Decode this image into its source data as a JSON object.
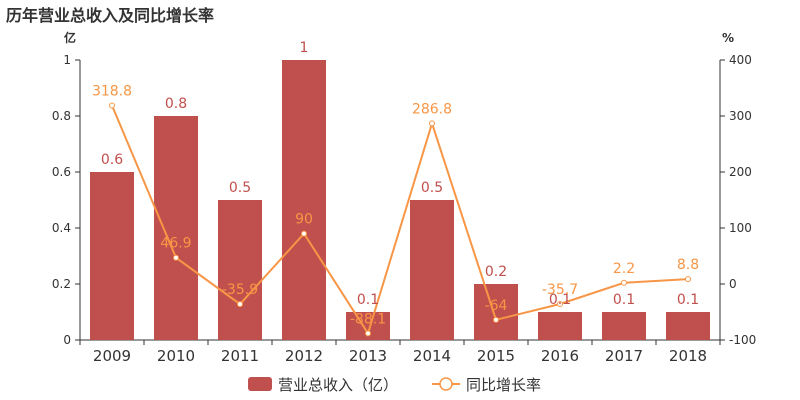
{
  "chart_data": {
    "type": "bar",
    "title": "历年营业总收入及同比增长率",
    "categories": [
      "2009",
      "2010",
      "2011",
      "2012",
      "2013",
      "2014",
      "2015",
      "2016",
      "2017",
      "2018"
    ],
    "series": [
      {
        "name": "营业总收入（亿）",
        "type": "bar",
        "axis": "left",
        "color": "#c0504d",
        "values": [
          0.6,
          0.8,
          0.5,
          1,
          0.1,
          0.5,
          0.2,
          0.1,
          0.1,
          0.1
        ],
        "labels": [
          "0.6",
          "0.8",
          "0.5",
          "1",
          "0.1",
          "0.5",
          "0.2",
          "0.1",
          "0.1",
          "0.1"
        ]
      },
      {
        "name": "同比增长率",
        "type": "line",
        "axis": "right",
        "color": "#f79646",
        "values": [
          318.8,
          46.9,
          -35.9,
          90,
          -88.1,
          286.8,
          -64,
          -35.7,
          2.2,
          8.8
        ],
        "labels": [
          "318.8",
          "46.9",
          "-35.9",
          "90",
          "-88.1",
          "286.8",
          "-64",
          "-35.7",
          "2.2",
          "8.8"
        ]
      }
    ],
    "y_left": {
      "unit": "亿",
      "ylim": [
        0,
        1
      ],
      "ticks": [
        0,
        0.2,
        0.4,
        0.6,
        0.8,
        1
      ],
      "tick_labels": [
        "0",
        "0.2",
        "0.4",
        "0.6",
        "0.8",
        "1"
      ]
    },
    "y_right": {
      "unit": "%",
      "ylim": [
        -100,
        400
      ],
      "ticks": [
        -100,
        0,
        100,
        200,
        300,
        400
      ],
      "tick_labels": [
        "-100",
        "0",
        "100",
        "200",
        "300",
        "400"
      ]
    },
    "grid": false,
    "legend_position": "bottom-center"
  }
}
